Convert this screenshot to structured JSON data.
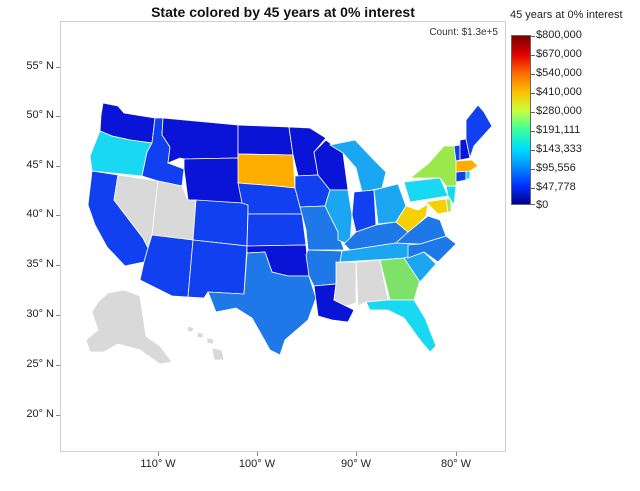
{
  "title": "State colored by 45 years at 0% interest",
  "count_label": "Count: $1.3e+5",
  "legend": {
    "title": "45 years at 0% interest",
    "ticks": [
      "$800,000",
      "$670,000",
      "$540,000",
      "$410,000",
      "$280,000",
      "$191,111",
      "$143,333",
      "$95,556",
      "$47,778",
      "$0"
    ],
    "gradient": [
      "#7a0000",
      "#e00000",
      "#ff6a00",
      "#ffc000",
      "#c8ff3c",
      "#3cff9c",
      "#00e0ff",
      "#0090ff",
      "#0030ff",
      "#00008c"
    ]
  },
  "axes": {
    "lat_labels": [
      "55° N",
      "50° N",
      "45° N",
      "40° N",
      "35° N",
      "30° N",
      "25° N",
      "20° N"
    ],
    "lon_labels": [
      "110° W",
      "100° W",
      "90° W",
      "80° W"
    ]
  },
  "colors": {
    "no_data": "#d9d9d9",
    "dark_blue": "#0a14d6",
    "blue": "#1040f0",
    "mid_blue": "#1e78e8",
    "sky": "#1aa6f0",
    "cyan": "#19d8f2",
    "green": "#7de16a",
    "lime": "#9be84c",
    "yellow": "#f7d000",
    "orange": "#ffae00"
  }
}
